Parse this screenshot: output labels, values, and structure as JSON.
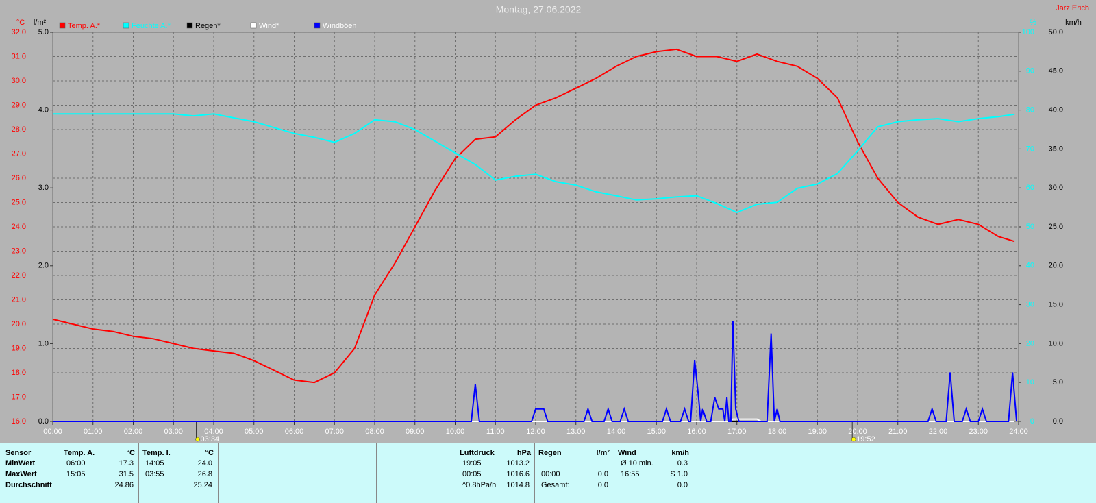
{
  "chart_data": {
    "type": "line",
    "title": "Montag, 27.06.2022",
    "author": "Jarz Erich",
    "ylabel": "°C",
    "y3label": "l/m²",
    "y2label": "%",
    "y4label": "km/h",
    "grid": true,
    "xlim": [
      0,
      24
    ],
    "xticks": [
      {
        "value": 0,
        "label": "00:00"
      },
      {
        "value": 1,
        "label": "01:00"
      },
      {
        "value": 2,
        "label": "02:00"
      },
      {
        "value": 3,
        "label": "03:00"
      },
      {
        "value": 4,
        "label": "04:00"
      },
      {
        "value": 5,
        "label": "05:00"
      },
      {
        "value": 6,
        "label": "06:00"
      },
      {
        "value": 7,
        "label": "07:00"
      },
      {
        "value": 8,
        "label": "08:00"
      },
      {
        "value": 9,
        "label": "09:00"
      },
      {
        "value": 10,
        "label": "10:00"
      },
      {
        "value": 11,
        "label": "11:00"
      },
      {
        "value": 12,
        "label": "12:00"
      },
      {
        "value": 13,
        "label": "13:00"
      },
      {
        "value": 14,
        "label": "14:00"
      },
      {
        "value": 15,
        "label": "15:00"
      },
      {
        "value": 16,
        "label": "16:00"
      },
      {
        "value": 17,
        "label": "17:00"
      },
      {
        "value": 18,
        "label": "18:00"
      },
      {
        "value": 19,
        "label": "19:00"
      },
      {
        "value": 20,
        "label": "20:00"
      },
      {
        "value": 21,
        "label": "21:00"
      },
      {
        "value": 22,
        "label": "22:00"
      },
      {
        "value": 23,
        "label": "23:00"
      },
      {
        "value": 24,
        "label": "24:00"
      }
    ],
    "ylim": [
      16,
      32
    ],
    "yticks": [
      {
        "value": 16,
        "label": "16.0"
      },
      {
        "value": 17,
        "label": "17.0"
      },
      {
        "value": 18,
        "label": "18.0"
      },
      {
        "value": 19,
        "label": "19.0"
      },
      {
        "value": 20,
        "label": "20.0"
      },
      {
        "value": 21,
        "label": "21.0"
      },
      {
        "value": 22,
        "label": "22.0"
      },
      {
        "value": 23,
        "label": "23.0"
      },
      {
        "value": 24,
        "label": "24.0"
      },
      {
        "value": 25,
        "label": "25.0"
      },
      {
        "value": 26,
        "label": "26.0"
      },
      {
        "value": 27,
        "label": "27.0"
      },
      {
        "value": 28,
        "label": "28.0"
      },
      {
        "value": 29,
        "label": "29.0"
      },
      {
        "value": 30,
        "label": "30.0"
      },
      {
        "value": 31,
        "label": "31.0"
      },
      {
        "value": 32,
        "label": "32.0"
      }
    ],
    "y3lim": [
      0,
      5
    ],
    "y3ticks": [
      {
        "value": 0,
        "label": "0.0"
      },
      {
        "value": 1,
        "label": "1.0"
      },
      {
        "value": 2,
        "label": "2.0"
      },
      {
        "value": 3,
        "label": "3.0"
      },
      {
        "value": 4,
        "label": "4.0"
      },
      {
        "value": 5,
        "label": "5.0"
      }
    ],
    "y2lim": [
      0,
      100
    ],
    "y2ticks": [
      0,
      10,
      20,
      30,
      40,
      50,
      60,
      70,
      80,
      90,
      100
    ],
    "y4lim": [
      0,
      50
    ],
    "y4ticks": [
      {
        "value": 0,
        "label": "0.0"
      },
      {
        "value": 5,
        "label": "5.0"
      },
      {
        "value": 10,
        "label": "10.0"
      },
      {
        "value": 15,
        "label": "15.0"
      },
      {
        "value": 20,
        "label": "20.0"
      },
      {
        "value": 25,
        "label": "25.0"
      },
      {
        "value": 30,
        "label": "30.0"
      },
      {
        "value": 35,
        "label": "35.0"
      },
      {
        "value": 40,
        "label": "40.0"
      },
      {
        "value": 45,
        "label": "45.0"
      },
      {
        "value": 50,
        "label": "50.0"
      }
    ],
    "annotations": [
      {
        "value": 3.567,
        "label": "03:34"
      },
      {
        "value": 19.867,
        "label": "19:52"
      }
    ],
    "series": [
      {
        "name": "Temp. A.*",
        "color": "#ff0000",
        "axis": "y",
        "x": [
          0,
          0.5,
          1,
          1.5,
          2,
          2.5,
          3,
          3.5,
          4,
          4.5,
          5,
          5.5,
          6,
          6.5,
          7,
          7.5,
          8,
          8.5,
          9,
          9.5,
          10,
          10.5,
          11,
          11.5,
          12,
          12.5,
          13,
          13.5,
          14,
          14.5,
          15,
          15.5,
          16,
          16.5,
          17,
          17.5,
          18,
          18.5,
          19,
          19.5,
          20,
          20.5,
          21,
          21.5,
          22,
          22.5,
          23,
          23.5,
          23.9
        ],
        "values": [
          20.2,
          20.0,
          19.8,
          19.7,
          19.5,
          19.4,
          19.2,
          19.0,
          18.9,
          18.8,
          18.5,
          18.1,
          17.7,
          17.6,
          18.0,
          19.0,
          21.2,
          22.5,
          24.0,
          25.5,
          26.8,
          27.6,
          27.7,
          28.4,
          29.0,
          29.3,
          29.7,
          30.1,
          30.6,
          31.0,
          31.2,
          31.3,
          31.0,
          31.0,
          30.8,
          31.1,
          30.8,
          30.6,
          30.1,
          29.3,
          27.5,
          26.0,
          25.0,
          24.4,
          24.1,
          24.3,
          24.1,
          23.6,
          23.4
        ]
      },
      {
        "name": "Feuchte A.*",
        "color": "#00ffff",
        "axis": "y2",
        "x": [
          0,
          0.5,
          1,
          1.5,
          2,
          2.5,
          3,
          3.5,
          4,
          4.5,
          5,
          5.5,
          6,
          6.5,
          7,
          7.5,
          8,
          8.5,
          9,
          9.5,
          10,
          10.5,
          11,
          11.5,
          12,
          12.5,
          13,
          13.5,
          14,
          14.5,
          15,
          15.5,
          16,
          16.5,
          17,
          17.5,
          18,
          18.5,
          19,
          19.5,
          20,
          20.5,
          21,
          21.5,
          22,
          22.5,
          23,
          23.5,
          23.9
        ],
        "values": [
          79,
          79,
          79,
          79,
          79,
          79,
          79,
          78.5,
          79,
          78,
          77,
          75.5,
          74,
          73,
          71.7,
          74,
          77.5,
          77,
          75,
          72,
          69,
          66,
          62,
          63,
          63.5,
          61.6,
          60.7,
          59,
          58,
          56.9,
          57.2,
          57.7,
          58,
          56,
          53.7,
          55.8,
          56.3,
          59.9,
          61,
          63.7,
          69.5,
          75.7,
          77,
          77.5,
          77.8,
          77,
          77.8,
          78.3,
          78.9
        ]
      },
      {
        "name": "Regen*",
        "color": "#000000",
        "axis": "y3",
        "x": [
          0,
          23.9
        ],
        "values": [
          0,
          0
        ]
      },
      {
        "name": "Wind*",
        "color": "#ffffff",
        "axis": "y4",
        "x": [
          0,
          16.8,
          16.9,
          17.5,
          17.6,
          23.9
        ],
        "values": [
          0,
          0,
          0.3,
          0.3,
          0,
          0
        ]
      },
      {
        "name": "Windböen",
        "color": "#0000ff",
        "axis": "y4",
        "x": [
          0,
          10.4,
          10.5,
          10.6,
          11.9,
          12.0,
          12.2,
          12.3,
          13.2,
          13.3,
          13.4,
          13.7,
          13.8,
          13.9,
          14.1,
          14.2,
          14.3,
          15.15,
          15.25,
          15.35,
          15.6,
          15.7,
          15.8,
          15.85,
          15.95,
          16.05,
          16.1,
          16.15,
          16.25,
          16.35,
          16.45,
          16.55,
          16.65,
          16.7,
          16.75,
          16.8,
          16.85,
          16.9,
          16.97,
          17.05,
          17.75,
          17.85,
          17.93,
          18.0,
          18.07,
          21.75,
          21.85,
          21.95,
          22.2,
          22.3,
          22.4,
          22.6,
          22.7,
          22.8,
          23.0,
          23.1,
          23.2,
          23.75,
          23.85,
          23.95
        ],
        "values": [
          0,
          0,
          4.8,
          0,
          0,
          1.6,
          1.6,
          0,
          0,
          1.6,
          0,
          0,
          1.6,
          0,
          0,
          1.6,
          0,
          0,
          1.6,
          0,
          0,
          1.6,
          0,
          0,
          7.9,
          3,
          0,
          1.6,
          0,
          0,
          3.1,
          1.6,
          1.6,
          0,
          3.1,
          0,
          0,
          12.9,
          1.6,
          0,
          0,
          11.3,
          0,
          1.6,
          0,
          0,
          1.6,
          0,
          0,
          6.3,
          0,
          0,
          1.6,
          0,
          0,
          1.6,
          0,
          0,
          6.3,
          0
        ]
      }
    ]
  },
  "stats": {
    "row_labels": [
      "Sensor",
      "MinWert",
      "MaxWert",
      "Durchschnitt"
    ],
    "blocks": [
      {
        "title": "Temp. A.",
        "unit": "°C",
        "rows": [
          [
            "06:00",
            "17.3"
          ],
          [
            "15:05",
            "31.5"
          ],
          [
            null,
            "24.86"
          ]
        ]
      },
      {
        "title": "Temp. I.",
        "unit": "°C",
        "rows": [
          [
            "14:05",
            "24.0"
          ],
          [
            "03:55",
            "26.8"
          ],
          [
            null,
            "25.24"
          ]
        ]
      },
      {
        "title": "Luftdruck",
        "unit": "hPa",
        "rows": [
          [
            "19:05",
            "1013.2"
          ],
          [
            "00:05",
            "1016.6"
          ],
          [
            "^0.8hPa/h",
            "1014.8"
          ]
        ]
      },
      {
        "title": "Regen",
        "unit": "l/m²",
        "rows": [
          [
            null,
            null
          ],
          [
            "00:00",
            "0.0"
          ],
          [
            "Gesamt:",
            "0.0"
          ]
        ]
      },
      {
        "title": "Wind",
        "unit": "km/h",
        "rows": [
          [
            "Ø 10 min.",
            "0.3"
          ],
          [
            "16:55",
            "S 1.0"
          ],
          [
            null,
            "0.0"
          ]
        ]
      }
    ]
  }
}
